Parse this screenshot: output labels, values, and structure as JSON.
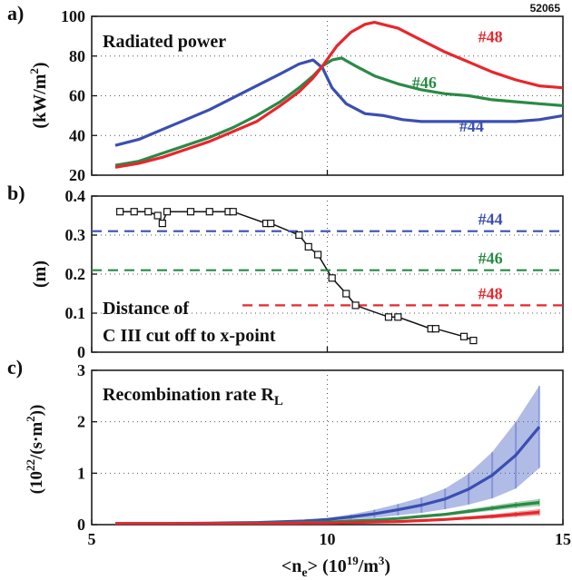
{
  "shot_number": "52065",
  "colors": {
    "blue": "#3a4fb0",
    "green": "#2a8a45",
    "red": "#e8262c",
    "black": "#111111"
  },
  "x_axis": {
    "label": "<n",
    "sub": "e",
    "label_tail": "> (10",
    "sup": "19",
    "label_end": "/m",
    "sup2": "3",
    "label_close": ")",
    "ticks": [
      "5",
      "10",
      "15"
    ]
  },
  "chart_data": [
    {
      "panel": "a)",
      "type": "line",
      "title": "Radiated power",
      "ylabel": {
        "main": "(kW/m",
        "sup": "2",
        "close": ")"
      },
      "ylim": [
        20,
        100
      ],
      "xlim": [
        5,
        15
      ],
      "yticks": [
        "20",
        "40",
        "60",
        "80",
        "100"
      ],
      "series": [
        {
          "name": "#44",
          "color": "blue",
          "x": [
            5.5,
            6.0,
            6.5,
            7.0,
            7.5,
            8.0,
            8.5,
            9.0,
            9.4,
            9.7,
            9.9,
            10.1,
            10.4,
            10.8,
            11.2,
            11.6,
            12.0,
            12.5,
            13.0,
            13.5,
            14.0,
            14.5,
            15.0
          ],
          "y": [
            35,
            38,
            43,
            48,
            53,
            59,
            65,
            71,
            76,
            78,
            74,
            64,
            56,
            51,
            50,
            48,
            47,
            47,
            47,
            47,
            47,
            48,
            50
          ]
        },
        {
          "name": "#46",
          "color": "green",
          "x": [
            5.5,
            6.0,
            6.5,
            7.0,
            7.5,
            8.0,
            8.5,
            9.0,
            9.4,
            9.7,
            9.9,
            10.1,
            10.3,
            10.6,
            11.0,
            11.5,
            12.0,
            12.5,
            13.0,
            13.5,
            14.0,
            14.5,
            15.0
          ],
          "y": [
            25,
            27,
            31,
            35,
            39,
            44,
            50,
            57,
            64,
            70,
            75,
            78,
            79,
            75,
            70,
            66,
            63,
            61,
            60,
            58,
            57,
            56,
            55
          ]
        },
        {
          "name": "#48",
          "color": "red",
          "x": [
            5.5,
            6.0,
            6.5,
            7.0,
            7.5,
            8.0,
            8.5,
            9.0,
            9.4,
            9.7,
            9.9,
            10.2,
            10.5,
            10.8,
            11.0,
            11.5,
            12.0,
            12.5,
            13.0,
            13.5,
            14.0,
            14.5,
            15.0
          ],
          "y": [
            24,
            26,
            29,
            33,
            37,
            42,
            47,
            55,
            62,
            69,
            75,
            85,
            92,
            96,
            97,
            94,
            88,
            82,
            77,
            72,
            68,
            65,
            64
          ]
        }
      ]
    },
    {
      "panel": "b)",
      "type": "line",
      "ylabel": {
        "main": "(m)"
      },
      "ylim": [
        0,
        0.4
      ],
      "xlim": [
        5,
        15
      ],
      "yticks": [
        "0",
        "0.1",
        "0.2",
        "0.3",
        "0.4"
      ],
      "annotation": [
        "Distance of",
        "C III cut off to x-point"
      ],
      "series": [
        {
          "name": "",
          "color": "black",
          "marker": "square",
          "x": [
            5.6,
            5.9,
            6.2,
            6.4,
            6.5,
            6.6,
            7.1,
            7.5,
            7.9,
            8.0,
            8.7,
            8.8,
            9.4,
            9.6,
            9.8,
            10.1,
            10.4,
            10.6,
            11.3,
            11.5,
            12.2,
            12.3,
            12.9,
            13.1
          ],
          "y": [
            0.36,
            0.36,
            0.36,
            0.35,
            0.33,
            0.36,
            0.36,
            0.36,
            0.36,
            0.36,
            0.33,
            0.33,
            0.3,
            0.27,
            0.25,
            0.19,
            0.15,
            0.12,
            0.09,
            0.09,
            0.06,
            0.06,
            0.04,
            0.03
          ]
        },
        {
          "name": "#44",
          "color": "blue",
          "dashed": true,
          "y": 0.31
        },
        {
          "name": "#46",
          "color": "green",
          "dashed": true,
          "y": 0.21
        },
        {
          "name": "#48",
          "color": "red",
          "dashed": true,
          "y": 0.12,
          "xstart": 8.2
        }
      ]
    },
    {
      "panel": "c)",
      "type": "area",
      "title": {
        "main": "Recombination rate R",
        "sub": "L"
      },
      "ylabel": {
        "main": "(10",
        "sup": "22",
        "mid": "/(s·m",
        "sup2": "2",
        "close": "))"
      },
      "ylim": [
        0,
        3
      ],
      "xlim": [
        5,
        15
      ],
      "yticks": [
        "0",
        "1",
        "2",
        "3"
      ],
      "series": [
        {
          "name": "",
          "color": "blue",
          "x": [
            5.5,
            6.5,
            7.5,
            8.5,
            9.5,
            10.0,
            10.5,
            11.0,
            11.5,
            12.0,
            12.5,
            13.0,
            13.5,
            14.0,
            14.5
          ],
          "y": [
            0.02,
            0.02,
            0.03,
            0.04,
            0.07,
            0.1,
            0.15,
            0.21,
            0.29,
            0.38,
            0.5,
            0.69,
            0.96,
            1.35,
            1.9
          ],
          "err": [
            0.0,
            0.0,
            0.0,
            0.01,
            0.02,
            0.03,
            0.05,
            0.08,
            0.11,
            0.15,
            0.2,
            0.3,
            0.45,
            0.65,
            0.8
          ]
        },
        {
          "name": "",
          "color": "green",
          "x": [
            5.5,
            6.5,
            7.5,
            8.5,
            9.5,
            10.0,
            10.5,
            11.0,
            11.5,
            12.0,
            12.5,
            13.0,
            13.5,
            14.0,
            14.5
          ],
          "y": [
            0.02,
            0.02,
            0.02,
            0.03,
            0.04,
            0.05,
            0.07,
            0.09,
            0.12,
            0.16,
            0.2,
            0.26,
            0.32,
            0.38,
            0.43
          ],
          "err": [
            0,
            0,
            0,
            0,
            0.01,
            0.01,
            0.01,
            0.02,
            0.02,
            0.03,
            0.03,
            0.04,
            0.05,
            0.06,
            0.07
          ]
        },
        {
          "name": "",
          "color": "red",
          "x": [
            5.5,
            6.5,
            7.5,
            8.5,
            9.5,
            10.0,
            10.5,
            11.0,
            11.5,
            12.0,
            12.5,
            13.0,
            13.5,
            14.0,
            14.5
          ],
          "y": [
            0.02,
            0.02,
            0.02,
            0.02,
            0.03,
            0.03,
            0.04,
            0.05,
            0.06,
            0.08,
            0.1,
            0.13,
            0.16,
            0.2,
            0.24
          ],
          "err": [
            0,
            0,
            0,
            0,
            0,
            0,
            0.01,
            0.01,
            0.01,
            0.02,
            0.02,
            0.03,
            0.04,
            0.05,
            0.06
          ]
        }
      ]
    }
  ]
}
